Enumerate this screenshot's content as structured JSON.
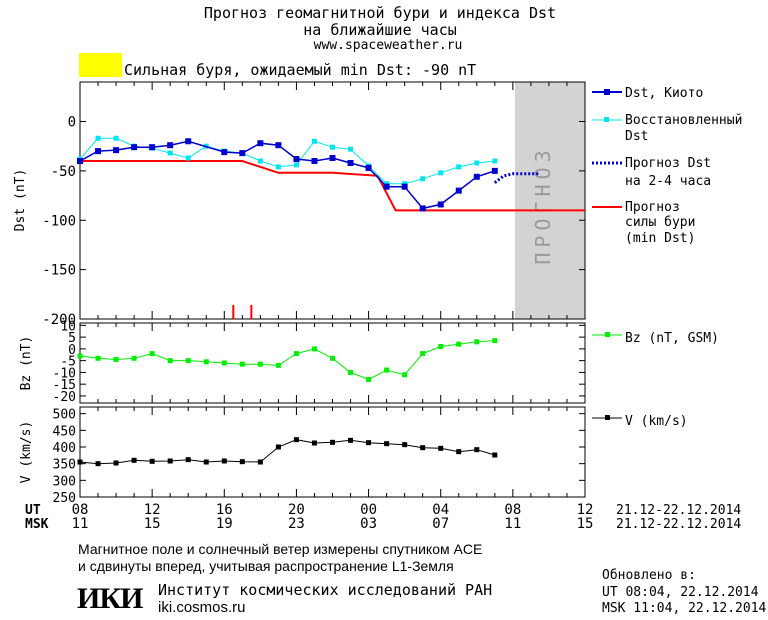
{
  "header": {
    "title_line1": "Прогноз геомагнитной бури и индекса Dst",
    "title_line2": "на ближайшие часы",
    "url": "www.spaceweather.ru",
    "storm_banner": "Сильная буря, ожидаемый min Dst: -90 nT",
    "storm_color": "#ffff00"
  },
  "legend": {
    "dst_kyoto": "Dst, Киото",
    "restored_1": "Восстановленный",
    "restored_2": "Dst",
    "forecast_1": "Прогноз Dst",
    "forecast_2": "на 2-4 часа",
    "storm_1": "Прогноз",
    "storm_2": "силы бури",
    "storm_3": "(min Dst)",
    "bz": "Bz (nT, GSM)",
    "v": "V (km/s)"
  },
  "time_axis": {
    "ut_label": "UT",
    "msk_label": "MSK",
    "ut_ticks": [
      "08",
      "12",
      "16",
      "20",
      "00",
      "04",
      "08",
      "12"
    ],
    "msk_ticks": [
      "11",
      "15",
      "19",
      "23",
      "03",
      "07",
      "11",
      "15"
    ],
    "date_range": "21.12-22.12.2014"
  },
  "forecast_zone_label": "ПРОГНОЗ",
  "footer": {
    "note_line1": "Магнитное поле и солнечный ветер измерены спутником ACE",
    "note_line2": "и сдвинуты вперед, учитывая распространение L1-Земля",
    "logo": "ИКИ",
    "institute": "Институт космических исследований РАН",
    "site": "iki.cosmos.ru",
    "updated_label": "Обновлено в:",
    "updated_ut": "UT  08:04, 22.12.2014",
    "updated_msk": "MSK 11:04, 22.12.2014"
  },
  "chart_data": [
    {
      "type": "line",
      "ylabel": "Dst (nT)",
      "ylim": [
        -200,
        40
      ],
      "xlim_hours": [
        0,
        28
      ],
      "yticks": [
        0,
        -50,
        -100,
        -150,
        -200
      ],
      "forecast_zone_start_hour": 24,
      "colors": {
        "dst_kyoto": "#0000cc",
        "restored": "#00e5ee",
        "forecast": "#0000cc",
        "storm": "#ff0000",
        "zone": "#d3d3d3"
      },
      "dst_kyoto": {
        "x": [
          0,
          1,
          2,
          3,
          4,
          5,
          6,
          8,
          9,
          10,
          11,
          12,
          13,
          14,
          15,
          16,
          17,
          18,
          19,
          20,
          21,
          22,
          23
        ],
        "y": [
          -40,
          -30,
          -29,
          -26,
          -26,
          -24,
          -20,
          -31,
          -32,
          -22,
          -24,
          -38,
          -40,
          -37,
          -42,
          -47,
          -66,
          -66,
          -88,
          -84,
          -70,
          -56,
          -50
        ]
      },
      "restored": {
        "x": [
          0,
          1,
          2,
          3,
          4,
          5,
          6,
          7,
          8,
          9,
          10,
          11,
          12,
          13,
          14,
          15,
          16,
          17,
          18,
          19,
          20,
          21,
          22,
          23
        ],
        "y": [
          -38,
          -17,
          -17,
          -25,
          -27,
          -32,
          -37,
          -25,
          -30,
          -32,
          -40,
          -46,
          -44,
          -20,
          -26,
          -28,
          -45,
          -63,
          -63,
          -58,
          -52,
          -46,
          -42,
          -40
        ]
      },
      "forecast_dst": {
        "x": [
          23,
          23.5,
          24,
          25.5
        ],
        "y": [
          -62,
          -55,
          -53,
          -53
        ]
      },
      "storm_forecast": {
        "x": [
          0,
          9,
          11,
          14,
          16.5,
          17.5,
          28
        ],
        "y": [
          -40,
          -40,
          -52,
          -52,
          -55,
          -90,
          -90
        ]
      },
      "red_markers_hours": [
        8.5,
        9.5
      ]
    },
    {
      "type": "line",
      "ylabel": "Bz (nT)",
      "ylim": [
        -23,
        11
      ],
      "yticks": [
        10,
        5,
        0,
        -5,
        -10,
        -15,
        -20
      ],
      "color": "#00ee00",
      "x": [
        0,
        1,
        2,
        3,
        4,
        5,
        6,
        7,
        8,
        9,
        10,
        11,
        12,
        13,
        14,
        15,
        16,
        17,
        18,
        19,
        20,
        21,
        22,
        23
      ],
      "y": [
        -3,
        -4,
        -4.5,
        -4,
        -2,
        -5,
        -5,
        -5.5,
        -6,
        -6.5,
        -6.5,
        -7,
        -2,
        0,
        -4,
        -10,
        -13,
        -9,
        -11,
        -2,
        1,
        2,
        3,
        3.5
      ]
    },
    {
      "type": "line",
      "ylabel": "V (km/s)",
      "ylim": [
        250,
        520
      ],
      "yticks": [
        500,
        450,
        400,
        350,
        300,
        250
      ],
      "color": "#000000",
      "x": [
        0,
        1,
        2,
        3,
        4,
        5,
        6,
        7,
        8,
        9,
        10,
        11,
        12,
        13,
        14,
        15,
        16,
        17,
        18,
        19,
        20,
        21,
        22,
        23
      ],
      "y": [
        355,
        350,
        352,
        360,
        357,
        358,
        362,
        355,
        358,
        356,
        355,
        400,
        422,
        412,
        414,
        420,
        413,
        410,
        407,
        398,
        396,
        386,
        392,
        376
      ]
    }
  ]
}
